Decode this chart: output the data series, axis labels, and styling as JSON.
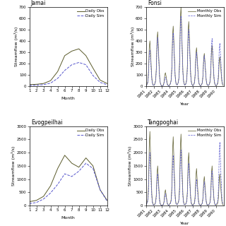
{
  "jamai": {
    "title": "Jamai",
    "xlabel": "Month",
    "ylabel": "Streamflow (m³/s)",
    "obs": [
      15,
      18,
      25,
      50,
      130,
      270,
      310,
      330,
      270,
      160,
      55,
      25
    ],
    "sim": [
      8,
      10,
      15,
      28,
      70,
      140,
      190,
      210,
      190,
      95,
      35,
      14
    ],
    "ylim": [
      0,
      700
    ],
    "yticks": [
      0,
      100,
      200,
      300,
      400,
      500,
      600,
      700
    ],
    "legend_obs": "Daily Obs",
    "legend_sim": "Daily Sim"
  },
  "fonsi": {
    "title": "Fonsi",
    "xlabel": "Year",
    "ylabel": "Streamflow (m³/s)",
    "ylim": [
      0,
      700
    ],
    "yticks": [
      0,
      100,
      200,
      300,
      400,
      500,
      600,
      700
    ],
    "legend_obs": "Monthly Obs",
    "legend_sim": "Monthly Sim",
    "start_year": 1981,
    "end_year": 1990,
    "xtick_years": [
      1981,
      1982,
      1983,
      1984,
      1985,
      1986,
      1987,
      1988,
      1989,
      1990
    ],
    "obs_peaks": [
      400,
      480,
      120,
      530,
      700,
      570,
      340,
      290,
      360,
      260
    ],
    "sim_peaks": [
      320,
      430,
      80,
      470,
      620,
      500,
      300,
      270,
      420,
      380
    ]
  },
  "evogpeilhai": {
    "title": "Evogpeilhai",
    "xlabel": "Month",
    "ylabel": "Streamflow (m³/s)",
    "obs": [
      150,
      200,
      350,
      750,
      1400,
      1900,
      1600,
      1450,
      1800,
      1500,
      600,
      200
    ],
    "sim": [
      80,
      120,
      250,
      480,
      800,
      1200,
      1100,
      1300,
      1600,
      1400,
      600,
      170
    ],
    "ylim": [
      0,
      3000
    ],
    "yticks": [
      0,
      500,
      1000,
      1500,
      2000,
      2500,
      3000
    ],
    "legend_obs": "Daily Obs",
    "legend_sim": "Daily Sim"
  },
  "tangpoghai": {
    "title": "Tangpoghai",
    "xlabel": "Year",
    "ylabel": "Streamflow (m³/s)",
    "ylim": [
      0,
      3000
    ],
    "yticks": [
      0,
      500,
      1000,
      1500,
      2000,
      2500,
      3000
    ],
    "legend_obs": "Monthly Obs",
    "legend_sim": "Monthly Sim",
    "start_year": 1981,
    "end_year": 1990,
    "xtick_years": [
      1981,
      1982,
      1983,
      1984,
      1985,
      1986,
      1987,
      1988,
      1989,
      1990
    ],
    "obs_peaks": [
      2800,
      1500,
      600,
      2600,
      2700,
      2000,
      1400,
      1100,
      1500,
      1200
    ],
    "sim_peaks": [
      2000,
      1200,
      450,
      1900,
      2100,
      1600,
      1000,
      900,
      1300,
      2400
    ]
  },
  "obs_color": "#5a5a2a",
  "sim_color": "#5555cc",
  "background_color": "#ffffff",
  "fontsize_title": 5.5,
  "fontsize_label": 4.5,
  "fontsize_tick": 4,
  "fontsize_legend": 4
}
